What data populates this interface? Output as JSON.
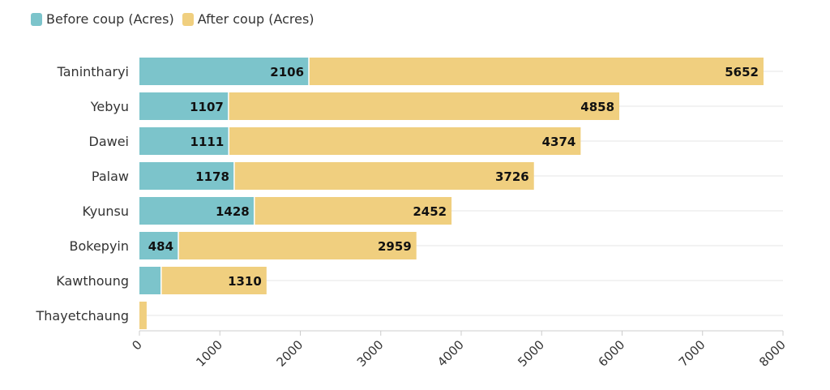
{
  "legend": {
    "before_label": "Before coup (Acres)",
    "after_label": "After coup (Acres)"
  },
  "colors": {
    "before": "#7cc4cb",
    "after": "#f0cf7f",
    "grid": "#e6e6e6"
  },
  "chart_data": {
    "type": "bar",
    "orientation": "horizontal",
    "stacked": true,
    "categories": [
      "Tanintharyi",
      "Yebyu",
      "Dawei",
      "Palaw",
      "Kyunsu",
      "Bokepyin",
      "Kawthoung",
      "Thayetchaung"
    ],
    "series": [
      {
        "name": "Before coup (Acres)",
        "values": [
          2106,
          1107,
          1111,
          1178,
          1428,
          484,
          270,
          0
        ],
        "labels": [
          "2106",
          "1107",
          "1111",
          "1178",
          "1428",
          "484",
          "",
          ""
        ]
      },
      {
        "name": "After coup (Acres)",
        "values": [
          5652,
          4858,
          4374,
          3726,
          2452,
          2959,
          1310,
          90
        ],
        "labels": [
          "5652",
          "4858",
          "4374",
          "3726",
          "2452",
          "2959",
          "1310",
          ""
        ]
      }
    ],
    "xlim": [
      0,
      8000
    ],
    "ticks": [
      0,
      1000,
      2000,
      3000,
      4000,
      5000,
      6000,
      7000,
      8000
    ],
    "tick_labels": [
      "0",
      "1000",
      "2000",
      "3000",
      "4000",
      "5000",
      "6000",
      "7000",
      "8000"
    ],
    "grid": true,
    "legend_position": "top-left",
    "title": "",
    "xlabel": "",
    "ylabel": ""
  }
}
